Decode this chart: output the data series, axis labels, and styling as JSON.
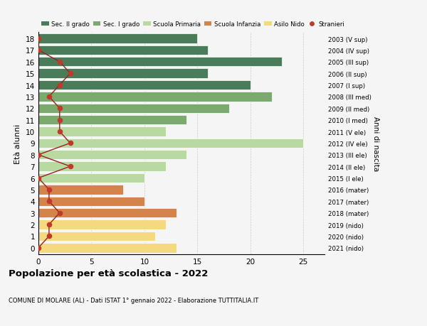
{
  "ages": [
    18,
    17,
    16,
    15,
    14,
    13,
    12,
    11,
    10,
    9,
    8,
    7,
    6,
    5,
    4,
    3,
    2,
    1,
    0
  ],
  "right_labels": [
    "2003 (V sup)",
    "2004 (IV sup)",
    "2005 (III sup)",
    "2006 (II sup)",
    "2007 (I sup)",
    "2008 (III med)",
    "2009 (II med)",
    "2010 (I med)",
    "2011 (V ele)",
    "2012 (IV ele)",
    "2013 (III ele)",
    "2014 (II ele)",
    "2015 (I ele)",
    "2016 (mater)",
    "2017 (mater)",
    "2018 (mater)",
    "2019 (nido)",
    "2020 (nido)",
    "2021 (nido)"
  ],
  "bar_values": [
    15,
    16,
    23,
    16,
    20,
    22,
    18,
    14,
    12,
    25,
    14,
    12,
    10,
    8,
    10,
    13,
    12,
    11,
    13
  ],
  "bar_colors": [
    "#4a7c59",
    "#4a7c59",
    "#4a7c59",
    "#4a7c59",
    "#4a7c59",
    "#7aaa6e",
    "#7aaa6e",
    "#7aaa6e",
    "#b8d9a0",
    "#b8d9a0",
    "#b8d9a0",
    "#b8d9a0",
    "#b8d9a0",
    "#d4844a",
    "#d4844a",
    "#d4844a",
    "#f5d97e",
    "#f5d97e",
    "#f5d97e"
  ],
  "stranieri_values": [
    0,
    0,
    2,
    3,
    2,
    1,
    2,
    2,
    2,
    3,
    0,
    3,
    0,
    1,
    1,
    2,
    1,
    1,
    0
  ],
  "title": "Popolazione per età scolastica - 2022",
  "subtitle": "COMUNE DI MOLARE (AL) - Dati ISTAT 1° gennaio 2022 - Elaborazione TUTTITALIA.IT",
  "ylabel": "Età alunni",
  "right_ylabel": "Anni di nascita",
  "xlim": [
    0,
    27
  ],
  "xticks": [
    0,
    5,
    10,
    15,
    20,
    25
  ],
  "legend_labels": [
    "Sec. II grado",
    "Sec. I grado",
    "Scuola Primaria",
    "Scuola Infanzia",
    "Asilo Nido",
    "Stranieri"
  ],
  "legend_colors": [
    "#4a7c59",
    "#7aaa6e",
    "#b8d9a0",
    "#d4844a",
    "#f5d97e",
    "#c0392b"
  ],
  "bg_color": "#f5f5f5",
  "grid_color": "#cccccc",
  "stranieri_line_color": "#9b2020",
  "stranieri_dot_color": "#c0392b"
}
